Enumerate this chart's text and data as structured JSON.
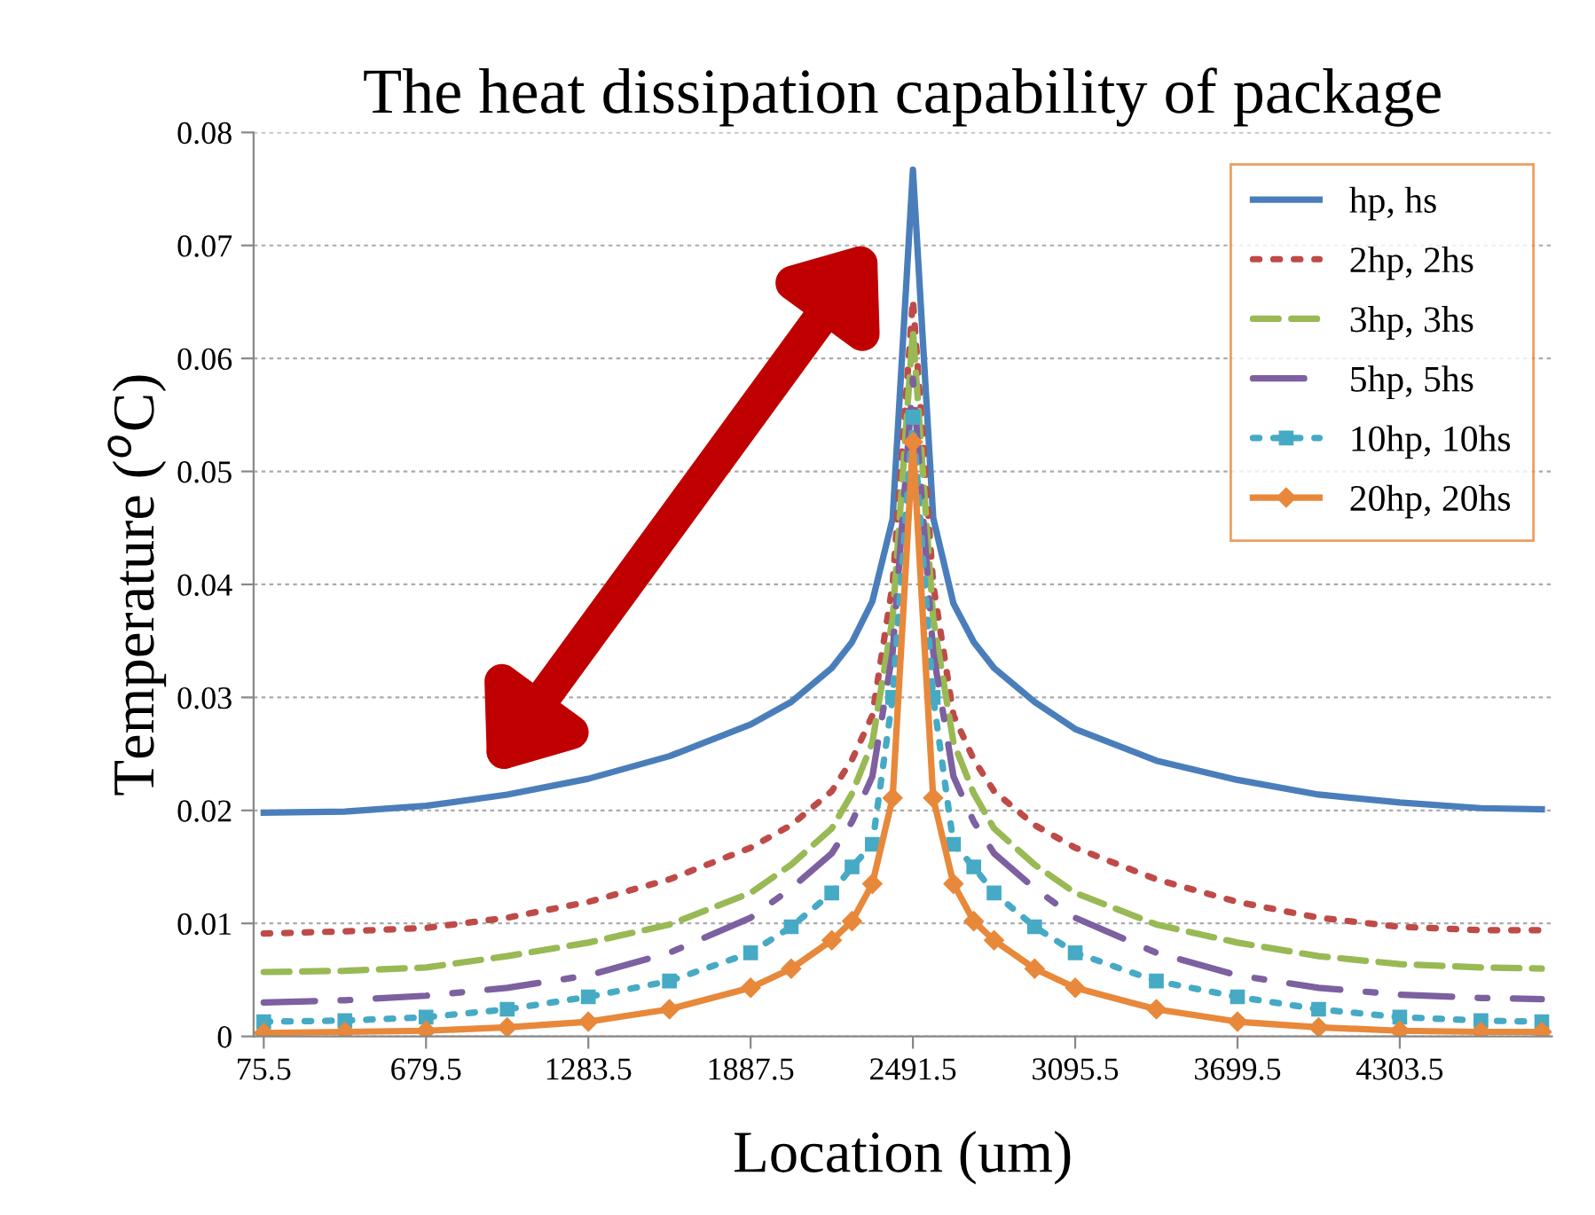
{
  "chart_data": {
    "type": "line",
    "title": "The heat dissipation capability of package",
    "xlabel": "Location (um)",
    "ylabel": "Temperature ($^{o}$C)",
    "x": [
      75.5,
      377.5,
      679.5,
      981.5,
      1283.5,
      1585.5,
      1887.5,
      2038.5,
      2189.5,
      2265,
      2340.5,
      2416,
      2491.5,
      2567,
      2642.5,
      2718,
      2793.5,
      2944.5,
      3095.5,
      3397.5,
      3699.5,
      4001.5,
      4303.5,
      4605.5,
      4832
    ],
    "series": [
      {
        "name": "hp, hs",
        "color": "#4a7ebb",
        "line_style": "solid",
        "marker": "none",
        "values": [
          0.0198,
          0.0199,
          0.0204,
          0.0214,
          0.0228,
          0.0248,
          0.0276,
          0.0296,
          0.0326,
          0.0349,
          0.0385,
          0.0458,
          0.0767,
          0.0459,
          0.0383,
          0.0349,
          0.0326,
          0.0296,
          0.0272,
          0.0244,
          0.0227,
          0.0214,
          0.0207,
          0.0202,
          0.0201
        ]
      },
      {
        "name": "2hp, 2hs",
        "color": "#be4b48",
        "line_style": "dotted",
        "marker": "none",
        "values": [
          0.0091,
          0.0093,
          0.0096,
          0.0105,
          0.0119,
          0.0139,
          0.0167,
          0.0187,
          0.0217,
          0.0245,
          0.0284,
          0.04,
          0.0652,
          0.04,
          0.0284,
          0.0245,
          0.0217,
          0.0187,
          0.0167,
          0.0139,
          0.0119,
          0.0105,
          0.0097,
          0.0094,
          0.0094
        ]
      },
      {
        "name": "3hp, 3hs",
        "color": "#98b954",
        "line_style": "dashed",
        "marker": "none",
        "values": [
          0.0057,
          0.0058,
          0.0061,
          0.0071,
          0.0083,
          0.0099,
          0.0127,
          0.0152,
          0.0184,
          0.0215,
          0.026,
          0.037,
          0.0625,
          0.037,
          0.026,
          0.0215,
          0.0184,
          0.0152,
          0.0127,
          0.0099,
          0.0083,
          0.0071,
          0.0064,
          0.0061,
          0.006
        ]
      },
      {
        "name": "5hp, 5hs",
        "color": "#7d60a0",
        "line_style": "dashdot",
        "marker": "none",
        "values": [
          0.003,
          0.0032,
          0.0036,
          0.0043,
          0.0054,
          0.0074,
          0.0105,
          0.0131,
          0.0162,
          0.019,
          0.023,
          0.034,
          0.0582,
          0.034,
          0.023,
          0.019,
          0.0162,
          0.0131,
          0.0105,
          0.0074,
          0.0054,
          0.0043,
          0.0037,
          0.0034,
          0.0033
        ]
      },
      {
        "name": "10hp, 10hs",
        "color": "#46aac5",
        "line_style": "dotted",
        "marker": "square",
        "values": [
          0.0013,
          0.0014,
          0.0017,
          0.0024,
          0.0035,
          0.0049,
          0.0074,
          0.0097,
          0.0127,
          0.015,
          0.017,
          0.03,
          0.0548,
          0.03,
          0.017,
          0.015,
          0.0127,
          0.0097,
          0.0074,
          0.0049,
          0.0035,
          0.0024,
          0.0017,
          0.0014,
          0.0013
        ]
      },
      {
        "name": "20hp, 20hs",
        "color": "#e8883a",
        "line_style": "solid",
        "marker": "diamond",
        "values": [
          0.0003,
          0.0004,
          0.0005,
          0.0008,
          0.0013,
          0.0024,
          0.0043,
          0.006,
          0.0085,
          0.0102,
          0.0135,
          0.0211,
          0.0526,
          0.0211,
          0.0135,
          0.0102,
          0.0085,
          0.006,
          0.0043,
          0.0024,
          0.0013,
          0.0008,
          0.0005,
          0.0004,
          0.0004
        ]
      }
    ],
    "xlim": [
      37.75,
      4869.75
    ],
    "xticks": [
      75.5,
      679.5,
      1283.5,
      1887.5,
      2491.5,
      3095.5,
      3699.5,
      4303.5
    ],
    "ylim": [
      0,
      0.08
    ],
    "yticks": [
      0,
      0.01,
      0.02,
      0.03,
      0.04,
      0.05,
      0.06,
      0.07,
      0.08
    ],
    "grid": "y",
    "legend": "top right"
  }
}
